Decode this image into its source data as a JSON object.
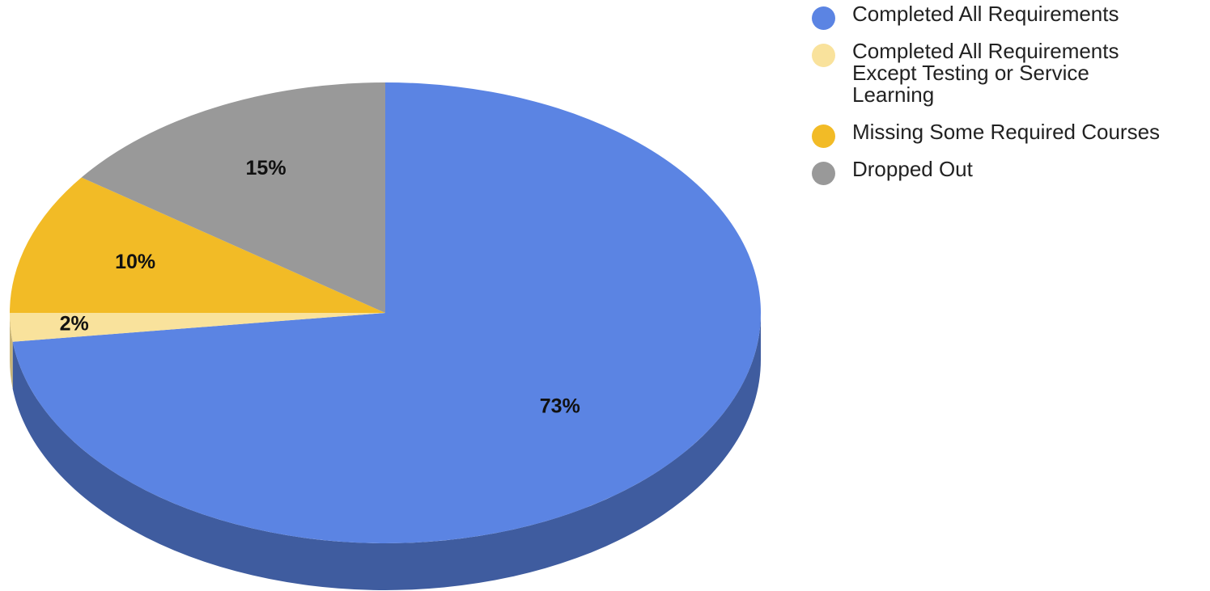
{
  "chart_data": {
    "type": "pie",
    "three_d": true,
    "start_angle_deg": 0,
    "direction": "clockwise",
    "legend_position": "right",
    "slices": [
      {
        "name": "Completed All Requirements",
        "value": 73,
        "label": "73%",
        "color": "#5b84e3",
        "side_color": "#3f5c9f"
      },
      {
        "name": "Completed All Requirements Except Testing or Service Learning",
        "value": 2,
        "label": "2%",
        "color": "#f9e29c",
        "side_color": "#c9b579"
      },
      {
        "name": "Missing Some Required Courses",
        "value": 10,
        "label": "10%",
        "color": "#f2bb26",
        "side_color": "#b48a1c"
      },
      {
        "name": "Dropped Out",
        "value": 15,
        "label": "15%",
        "color": "#999999",
        "side_color": "#6f6f6f"
      }
    ]
  }
}
